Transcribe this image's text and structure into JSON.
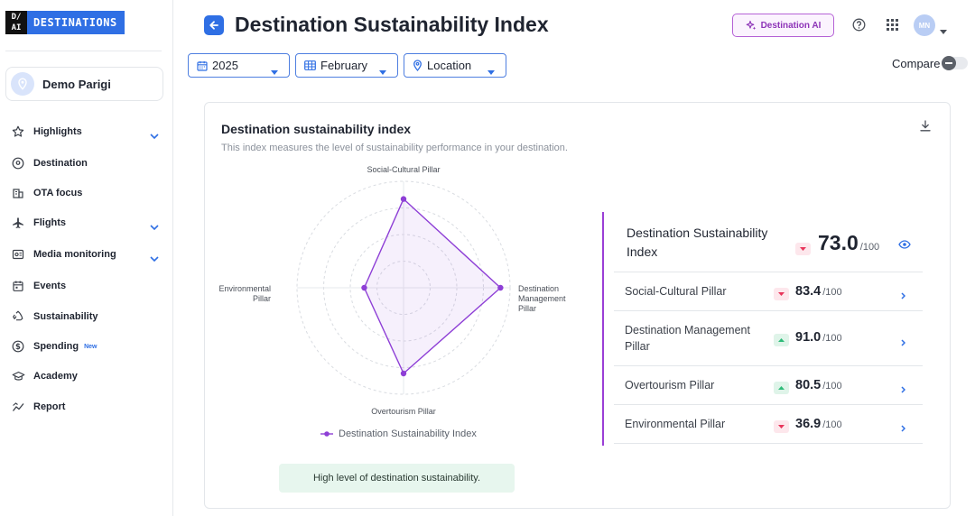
{
  "brand": {
    "mark_top": "D/",
    "mark_bottom": "AI",
    "name": "DESTINATIONS"
  },
  "account": {
    "name": "Demo Parigi"
  },
  "sidebar": {
    "items": [
      {
        "label": "Highlights",
        "icon": "star-icon",
        "expandable": true
      },
      {
        "label": "Destination",
        "icon": "destination-icon",
        "expandable": false
      },
      {
        "label": "OTA focus",
        "icon": "building-icon",
        "expandable": false
      },
      {
        "label": "Flights",
        "icon": "plane-icon",
        "expandable": true
      },
      {
        "label": "Media monitoring",
        "icon": "media-icon",
        "expandable": true
      },
      {
        "label": "Events",
        "icon": "calendar-icon",
        "expandable": false
      },
      {
        "label": "Sustainability",
        "icon": "recycle-icon",
        "expandable": false
      },
      {
        "label": "Spending",
        "icon": "dollar-icon",
        "badge": "New",
        "expandable": false
      },
      {
        "label": "Academy",
        "icon": "graduation-cap-icon",
        "expandable": false
      },
      {
        "label": "Report",
        "icon": "report-chart-icon",
        "expandable": false
      }
    ]
  },
  "header": {
    "title": "Destination Sustainability Index",
    "ai_button": "Destination AI",
    "user_initials": "MN"
  },
  "filters": {
    "year": "2025",
    "month": "February",
    "location": "Location",
    "compare_label": "Compare",
    "compare_enabled": false
  },
  "card": {
    "title": "Destination sustainability index",
    "subtitle": "This index measures the level of sustainability performance in your destination.",
    "level_message": "High level of destination sustainability."
  },
  "chart_data": {
    "type": "radar",
    "axes": [
      "Social-Cultural Pillar",
      "Destination Management Pillar",
      "Overtourism Pillar",
      "Environmental Pillar"
    ],
    "axis_label_lines": [
      [
        "Social-Cultural Pillar"
      ],
      [
        "Destination",
        "Management",
        "Pillar"
      ],
      [
        "Overtourism Pillar"
      ],
      [
        "Environmental",
        "Pillar"
      ]
    ],
    "series": [
      {
        "name": "Destination Sustainability Index",
        "values": [
          83.4,
          91.0,
          80.5,
          36.9
        ],
        "color": "#8e3fd6"
      }
    ],
    "range": [
      0,
      100
    ],
    "rings": 4
  },
  "index": {
    "label": "Destination Sustainability Index",
    "value": "73.0",
    "out_of": "/100",
    "trend": "down"
  },
  "pillars": [
    {
      "label": "Social-Cultural Pillar",
      "value": "83.4",
      "out_of": "/100",
      "trend": "down"
    },
    {
      "label": "Destination Management Pillar",
      "value": "91.0",
      "out_of": "/100",
      "trend": "up"
    },
    {
      "label": "Overtourism Pillar",
      "value": "80.5",
      "out_of": "/100",
      "trend": "up"
    },
    {
      "label": "Environmental Pillar",
      "value": "36.9",
      "out_of": "/100",
      "trend": "down"
    }
  ],
  "colors": {
    "accent": "#2f6fe4",
    "series": "#8e3fd6",
    "up": "#2dbb78",
    "down": "#e8345a",
    "ai": "#8e35b8"
  }
}
